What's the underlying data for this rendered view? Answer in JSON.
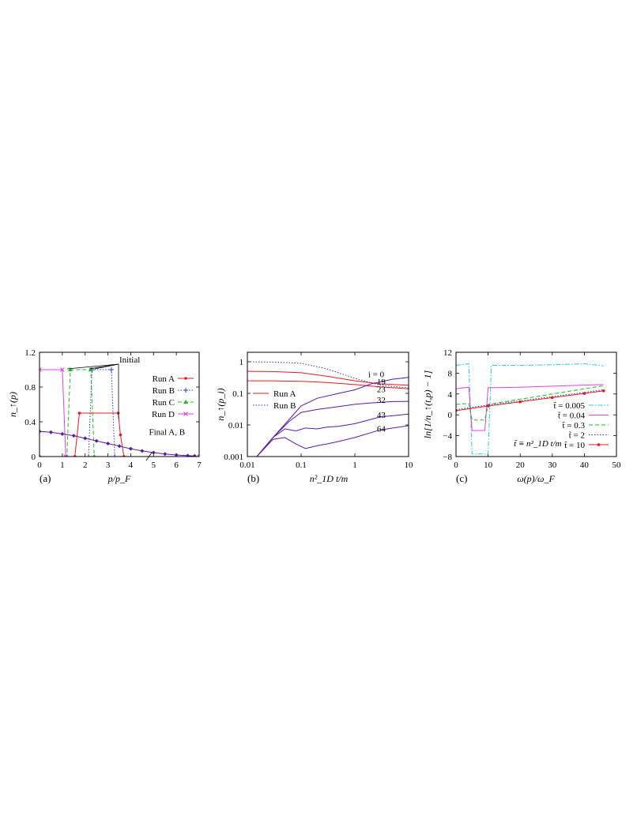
{
  "chart_data": [
    {
      "panel_label": "(a)",
      "type": "line",
      "xlabel": "p/p_F",
      "ylabel": "n_↑(p)",
      "xlim": [
        0,
        7
      ],
      "ylim": [
        0,
        1.2
      ],
      "xticks": [
        0,
        1,
        2,
        3,
        4,
        5,
        6,
        7
      ],
      "yticks": [
        0,
        0.4,
        0.8,
        1.2
      ],
      "xtick_labels": [
        "0",
        "1",
        "2",
        "3",
        "4",
        "5",
        "6",
        "7"
      ],
      "ytick_labels": [
        "0",
        "0.4",
        "0.8",
        "1.2"
      ],
      "legend_position": "right",
      "series": [
        {
          "name": "Run A",
          "color": "#e41a1c",
          "dash": "solid",
          "marker": "dot",
          "x": [
            0,
            1.55,
            1.75,
            3.45,
            3.55,
            3.7,
            7
          ],
          "y": [
            0,
            0,
            0.5,
            0.5,
            0.25,
            0,
            0
          ]
        },
        {
          "name": "Run B",
          "color": "#1f3fd1",
          "dash": "dotted",
          "marker": "plus",
          "x": [
            0,
            2.15,
            2.3,
            3.15,
            3.3,
            7
          ],
          "y": [
            0,
            0,
            1.0,
            1.0,
            0,
            0
          ]
        },
        {
          "name": "Run C",
          "color": "#22bb22",
          "dash": "dashed",
          "marker": "triangle",
          "x": [
            0,
            1.2,
            1.35,
            2.25,
            2.4,
            7
          ],
          "y": [
            0,
            0,
            1.0,
            1.0,
            0,
            0
          ]
        },
        {
          "name": "Run D",
          "color": "#e040e0",
          "dash": "solid",
          "marker": "x",
          "x": [
            0,
            1.0,
            1.15,
            7
          ],
          "y": [
            1.0,
            1.0,
            0,
            0
          ]
        },
        {
          "color": "#5a1aa6",
          "dash": "solid",
          "marker": "diamond",
          "x": [
            0,
            0.5,
            1,
            1.5,
            2,
            2.5,
            3,
            3.5,
            4,
            4.5,
            5,
            5.5,
            6,
            6.5,
            6.8
          ],
          "y": [
            0.29,
            0.28,
            0.26,
            0.24,
            0.21,
            0.18,
            0.15,
            0.12,
            0.09,
            0.065,
            0.045,
            0.03,
            0.018,
            0.01,
            0.007
          ]
        }
      ],
      "annotations": [
        {
          "text": "Initial",
          "x": 3.5,
          "y": 1.08
        },
        {
          "text": "Final A, B",
          "x": 4.8,
          "y": 0.25
        }
      ]
    },
    {
      "panel_label": "(b)",
      "type": "line",
      "xlabel": "n²_1D t/m",
      "ylabel": "n_↑(p_i)",
      "xscale": "log",
      "yscale": "log",
      "xlim": [
        0.01,
        10
      ],
      "ylim": [
        0.001,
        2
      ],
      "xticks": [
        0.01,
        0.1,
        1,
        10
      ],
      "yticks": [
        0.001,
        0.01,
        0.1,
        1
      ],
      "xtick_labels": [
        "0.01",
        "0.1",
        "1",
        "10"
      ],
      "ytick_labels": [
        "0.001",
        "0.01",
        "0.1",
        "1"
      ],
      "legend_position": "left",
      "series": [
        {
          "name": "Run A",
          "color": "#e41a1c",
          "dash": "solid"
        },
        {
          "name": "Run B",
          "color": "#1f3fd1",
          "dash": "dotted"
        }
      ],
      "curve_labels": [
        {
          "text": "i = 0",
          "x": 2.5,
          "y": 0.33
        },
        {
          "text": "19",
          "x": 3.1,
          "y": 0.19
        },
        {
          "text": "23",
          "x": 3.1,
          "y": 0.11
        },
        {
          "text": "32",
          "x": 3.1,
          "y": 0.05
        },
        {
          "text": "43",
          "x": 3.1,
          "y": 0.017
        },
        {
          "text": "64",
          "x": 3.1,
          "y": 0.0062
        }
      ],
      "curves": [
        {
          "label": "i = 0",
          "color": "#1f3fd1",
          "dash": "dotted",
          "x": [
            0.01,
            0.03,
            0.1,
            0.3,
            1,
            3,
            10
          ],
          "y": [
            1.0,
            0.98,
            0.9,
            0.6,
            0.3,
            0.18,
            0.15
          ]
        },
        {
          "label": "i = 0",
          "color": "#e41a1c",
          "dash": "solid",
          "x": [
            0.01,
            0.03,
            0.1,
            0.3,
            1,
            3,
            10
          ],
          "y": [
            0.5,
            0.49,
            0.45,
            0.35,
            0.25,
            0.2,
            0.18
          ]
        },
        {
          "label": "19",
          "color": "#e41a1c",
          "dash": "solid",
          "x": [
            0.01,
            0.03,
            0.1,
            0.3,
            1,
            3,
            10
          ],
          "y": [
            0.25,
            0.25,
            0.24,
            0.22,
            0.19,
            0.16,
            0.14
          ]
        },
        {
          "label": "23",
          "color": "#5a1aa6",
          "dash": "solid",
          "x": [
            0.015,
            0.03,
            0.06,
            0.1,
            0.2,
            0.5,
            1,
            2,
            5,
            10
          ],
          "y": [
            0.001,
            0.004,
            0.015,
            0.04,
            0.07,
            0.1,
            0.13,
            0.2,
            0.28,
            0.32
          ]
        },
        {
          "label": "32",
          "color": "#5a1aa6",
          "dash": "solid",
          "x": [
            0.015,
            0.03,
            0.06,
            0.1,
            0.2,
            0.5,
            1,
            2,
            5,
            10
          ],
          "y": [
            0.001,
            0.004,
            0.013,
            0.025,
            0.031,
            0.038,
            0.045,
            0.05,
            0.055,
            0.056
          ]
        },
        {
          "label": "43",
          "color": "#5a1aa6",
          "dash": "solid",
          "x": [
            0.015,
            0.03,
            0.05,
            0.08,
            0.12,
            0.2,
            0.3,
            0.5,
            1,
            3,
            10
          ],
          "y": [
            0.001,
            0.004,
            0.0075,
            0.0065,
            0.008,
            0.0075,
            0.0085,
            0.009,
            0.011,
            0.018,
            0.022
          ]
        },
        {
          "label": "64",
          "color": "#5a1aa6",
          "dash": "solid",
          "x": [
            0.015,
            0.03,
            0.05,
            0.08,
            0.12,
            0.2,
            0.3,
            0.5,
            1,
            3,
            10
          ],
          "y": [
            0.001,
            0.0035,
            0.004,
            0.0025,
            0.0018,
            0.0022,
            0.0025,
            0.003,
            0.004,
            0.007,
            0.0095
          ]
        }
      ]
    },
    {
      "panel_label": "(c)",
      "type": "line",
      "xlabel": "ω(p)/ω_F",
      "ylabel": "ln[1/n_↑(t,p) − 1]",
      "xlim": [
        0,
        50
      ],
      "ylim": [
        -8,
        12
      ],
      "xticks": [
        0,
        10,
        20,
        30,
        40,
        50
      ],
      "yticks": [
        -8,
        -4,
        0,
        4,
        8,
        12
      ],
      "xtick_labels": [
        "0",
        "10",
        "20",
        "30",
        "40",
        "50"
      ],
      "ytick_labels": [
        "−8",
        "−4",
        "0",
        "4",
        "8",
        "12"
      ],
      "legend_position": "bottom-right",
      "note": "t̃ ≡ n²_1D t/m",
      "series": [
        {
          "name": "t̃ = 0.005",
          "color": "#22d3d3",
          "dash": "dashdot",
          "x": [
            0,
            4,
            5,
            10,
            11,
            20,
            30,
            40,
            46
          ],
          "y": [
            9.5,
            9.8,
            -7.5,
            -7.5,
            9.5,
            9.5,
            9.6,
            9.8,
            9.4
          ]
        },
        {
          "name": "t̃ = 0.04",
          "color": "#e040e0",
          "dash": "solid",
          "x": [
            0,
            4,
            5,
            9,
            10,
            20,
            30,
            40,
            46
          ],
          "y": [
            5.0,
            5.3,
            -3.0,
            -3.0,
            5.2,
            5.3,
            5.5,
            5.7,
            5.8
          ]
        },
        {
          "name": "t̃ = 0.3",
          "color": "#22bb22",
          "dash": "dashed",
          "x": [
            0,
            4,
            5,
            9,
            10,
            20,
            30,
            40,
            46
          ],
          "y": [
            2.0,
            2.2,
            -1.0,
            -1.0,
            2.0,
            3.0,
            4.0,
            5.0,
            5.6
          ]
        },
        {
          "name": "t̃ = 2",
          "color": "#1f3fd1",
          "dash": "dotted",
          "x": [
            0,
            10,
            20,
            30,
            40,
            46
          ],
          "y": [
            1.0,
            1.9,
            2.7,
            3.5,
            4.3,
            4.8
          ]
        },
        {
          "name": "t̃ = 10",
          "color": "#e41a1c",
          "dash": "solid",
          "marker": "dot",
          "x": [
            0,
            10,
            20,
            30,
            40,
            46
          ],
          "y": [
            0.8,
            1.7,
            2.5,
            3.3,
            4.1,
            4.6
          ]
        }
      ]
    }
  ]
}
